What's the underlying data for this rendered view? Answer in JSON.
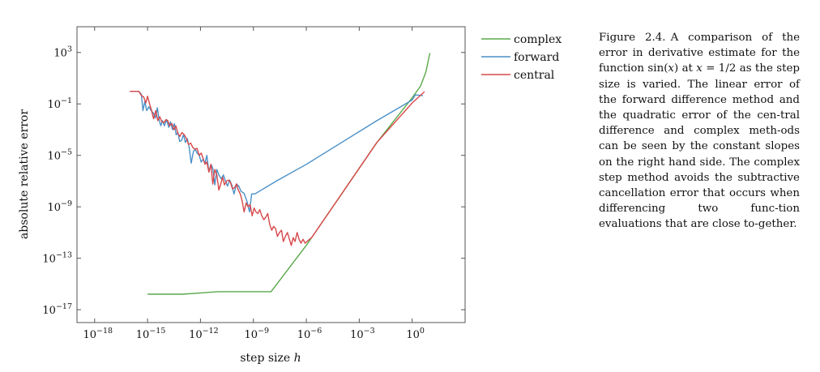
{
  "chart_data": {
    "type": "line",
    "xlabel": "step size h",
    "ylabel": "absolute relative error",
    "x_scale": "log",
    "y_scale": "log",
    "xlim": [
      1e-19,
      1000.0
    ],
    "ylim": [
      1e-18,
      100000.0
    ],
    "grid": false,
    "legend_position": "outside-right-top",
    "x_ticks": [
      {
        "value": 1e-18,
        "base": "10",
        "exp": "−18"
      },
      {
        "value": 1e-15,
        "base": "10",
        "exp": "−15"
      },
      {
        "value": 1e-12,
        "base": "10",
        "exp": "−12"
      },
      {
        "value": 1e-09,
        "base": "10",
        "exp": "−9"
      },
      {
        "value": 1e-06,
        "base": "10",
        "exp": "−6"
      },
      {
        "value": 0.001,
        "base": "10",
        "exp": "−3"
      },
      {
        "value": 1,
        "base": "10",
        "exp": "0"
      }
    ],
    "y_ticks": [
      {
        "value": 1000.0,
        "base": "10",
        "exp": "3"
      },
      {
        "value": 0.1,
        "base": "10",
        "exp": "−1"
      },
      {
        "value": 1e-05,
        "base": "10",
        "exp": "−5"
      },
      {
        "value": 1e-09,
        "base": "10",
        "exp": "−9"
      },
      {
        "value": 1e-13,
        "base": "10",
        "exp": "−13"
      },
      {
        "value": 1e-17,
        "base": "10",
        "exp": "−17"
      }
    ],
    "series": [
      {
        "name": "complex",
        "color": "#5aa84c",
        "points": [
          [
            1e-15,
            1.6e-16
          ],
          [
            1e-13,
            1.6e-16
          ],
          [
            1e-11,
            2.5e-16
          ],
          [
            1e-08,
            2.5e-16
          ],
          [
            1e-06,
            1e-12
          ],
          [
            0.0001,
            1e-08
          ],
          [
            0.01,
            0.0001
          ],
          [
            1,
            0.3
          ],
          [
            3,
            2.5
          ],
          [
            6,
            30
          ],
          [
            10,
            900
          ]
        ]
      },
      {
        "name": "forward",
        "color": "#4a90c8",
        "points": [
          [
            1e-16,
            0.95
          ],
          [
            3.2e-16,
            0.95
          ],
          [
            4.5e-16,
            0.55
          ],
          [
            5.5e-16,
            0.03
          ],
          [
            7e-16,
            0.15
          ],
          [
            9e-16,
            0.03
          ],
          [
            1.2e-15,
            0.06
          ],
          [
            1.6e-15,
            0.03
          ],
          [
            2.1e-15,
            0.02
          ],
          [
            2.8e-15,
            0.008
          ],
          [
            3.6e-15,
            0.05
          ],
          [
            4.5e-15,
            0.006
          ],
          [
            5.6e-15,
            0.002
          ],
          [
            7e-15,
            0.005
          ],
          [
            9e-15,
            0.002
          ],
          [
            1.2e-14,
            0.006
          ],
          [
            1.6e-14,
            0.0015
          ],
          [
            2e-14,
            0.004
          ],
          [
            2.6e-14,
            0.001
          ],
          [
            3.3e-14,
            0.003
          ],
          [
            4.2e-14,
            0.0004
          ],
          [
            5.3e-14,
            0.0006
          ],
          [
            6.6e-14,
            0.00012
          ],
          [
            8.5e-14,
            0.00015
          ],
          [
            1.1e-13,
            0.0004
          ],
          [
            1.4e-13,
            0.0001
          ],
          [
            1.8e-13,
            0.0002
          ],
          [
            2.3e-13,
            4e-05
          ],
          [
            3e-13,
            2.5e-06
          ],
          [
            4e-13,
            2e-05
          ],
          [
            5e-13,
            3e-05
          ],
          [
            6.5e-13,
            1.5e-05
          ],
          [
            8.5e-13,
            1e-05
          ],
          [
            1.1e-12,
            3e-06
          ],
          [
            1.4e-12,
            5e-06
          ],
          [
            1.8e-12,
            2.5e-06
          ],
          [
            2.3e-12,
            1e-05
          ],
          [
            3e-12,
            5e-07
          ],
          [
            4e-12,
            2e-06
          ],
          [
            5e-12,
            1e-06
          ],
          [
            6.5e-12,
            5e-08
          ],
          [
            8.5e-12,
            8e-07
          ],
          [
            1.1e-11,
            3e-07
          ],
          [
            1.5e-11,
            1.5e-07
          ],
          [
            2e-11,
            3e-07
          ],
          [
            2.6e-11,
            1e-07
          ],
          [
            3.4e-11,
            4e-08
          ],
          [
            4.5e-11,
            1.2e-07
          ],
          [
            6e-11,
            5e-08
          ],
          [
            8e-11,
            1e-08
          ],
          [
            1.1e-10,
            6e-08
          ],
          [
            1.5e-10,
            4e-08
          ],
          [
            2e-10,
            1.6e-08
          ],
          [
            3e-10,
            1.1e-08
          ],
          [
            4.5e-10,
            2.2e-09
          ],
          [
            6e-10,
            4e-10
          ],
          [
            8e-10,
            1e-08
          ],
          [
            1.2e-09,
            1e-08
          ],
          [
            2e-08,
            1e-07
          ],
          [
            1e-06,
            2e-06
          ],
          [
            0.0001,
            0.0001
          ],
          [
            0.01,
            0.005
          ],
          [
            1,
            0.2
          ],
          [
            1.5,
            0.5
          ],
          [
            4,
            0.45
          ]
        ]
      },
      {
        "name": "central",
        "color": "#d8484a",
        "points": [
          [
            1e-16,
            0.95
          ],
          [
            3.2e-16,
            0.95
          ],
          [
            4.5e-16,
            0.45
          ],
          [
            6e-16,
            0.35
          ],
          [
            8e-16,
            0.12
          ],
          [
            1e-15,
            0.4
          ],
          [
            1.3e-15,
            0.1
          ],
          [
            1.7e-15,
            0.03
          ],
          [
            2.2e-15,
            0.007
          ],
          [
            2.9e-15,
            0.03
          ],
          [
            3.8e-15,
            0.005
          ],
          [
            5e-15,
            0.01
          ],
          [
            6.5e-15,
            0.004
          ],
          [
            8.5e-15,
            0.0035
          ],
          [
            1.1e-14,
            0.006
          ],
          [
            1.4e-14,
            0.005
          ],
          [
            1.8e-14,
            0.002
          ],
          [
            2.4e-14,
            0.003
          ],
          [
            3.1e-14,
            0.001
          ],
          [
            4e-14,
            0.002
          ],
          [
            5.2e-14,
            0.0005
          ],
          [
            6.8e-14,
            0.0003
          ],
          [
            9e-14,
            0.0006
          ],
          [
            1.2e-13,
            0.0004
          ],
          [
            1.6e-13,
            0.0002
          ],
          [
            2.1e-13,
            7e-05
          ],
          [
            2.8e-13,
            9e-05
          ],
          [
            3.7e-13,
            4e-05
          ],
          [
            4.9e-13,
            3e-05
          ],
          [
            6.4e-13,
            3.5e-05
          ],
          [
            8.4e-13,
            1e-05
          ],
          [
            1.1e-12,
            1.5e-05
          ],
          [
            1.4e-12,
            6e-06
          ],
          [
            1.8e-12,
            2e-06
          ],
          [
            2.3e-12,
            3e-06
          ],
          [
            3e-12,
            5e-07
          ],
          [
            3.9e-12,
            2e-06
          ],
          [
            5e-12,
            6e-08
          ],
          [
            6.5e-12,
            8e-07
          ],
          [
            8.5e-12,
            3e-07
          ],
          [
            1.1e-11,
            2e-08
          ],
          [
            1.4e-11,
            6e-08
          ],
          [
            1.8e-11,
            2e-07
          ],
          [
            2.3e-11,
            5e-08
          ],
          [
            3e-11,
            1e-07
          ],
          [
            3.9e-11,
            1.2e-07
          ],
          [
            5e-11,
            8e-08
          ],
          [
            6.5e-11,
            2.5e-08
          ],
          [
            8.5e-11,
            3e-08
          ],
          [
            1.1e-10,
            6e-08
          ],
          [
            1.4e-10,
            2e-08
          ],
          [
            1.8e-10,
            1e-08
          ],
          [
            2.3e-10,
            3e-09
          ],
          [
            3e-10,
            4e-10
          ],
          [
            3.9e-10,
            2e-09
          ],
          [
            5e-10,
            1e-09
          ],
          [
            6.5e-10,
            1.5e-09
          ],
          [
            8.5e-10,
            2e-10
          ],
          [
            1.1e-09,
            8e-10
          ],
          [
            1.4e-09,
            4e-10
          ],
          [
            1.8e-09,
            3e-10
          ],
          [
            2.3e-09,
            6e-10
          ],
          [
            3e-09,
            2e-10
          ],
          [
            3.9e-09,
            1e-10
          ],
          [
            5e-09,
            1.5e-10
          ],
          [
            6.5e-09,
            3e-10
          ],
          [
            8.5e-09,
            4e-11
          ],
          [
            1.1e-08,
            1.5e-11
          ],
          [
            1.4e-08,
            3e-11
          ],
          [
            1.8e-08,
            2e-11
          ],
          [
            2.3e-08,
            5e-12
          ],
          [
            3e-08,
            1e-11
          ],
          [
            3.9e-08,
            1.5e-11
          ],
          [
            5e-08,
            2e-12
          ],
          [
            6.5e-08,
            5e-12
          ],
          [
            8.5e-08,
            1e-11
          ],
          [
            1.1e-07,
            3e-12
          ],
          [
            1.4e-07,
            1e-12
          ],
          [
            1.8e-07,
            4e-12
          ],
          [
            2.3e-07,
            2e-12
          ],
          [
            3e-07,
            1e-11
          ],
          [
            3.9e-07,
            3e-12
          ],
          [
            5e-07,
            1.5e-12
          ],
          [
            6.5e-07,
            3e-12
          ],
          [
            8.5e-07,
            1.5e-12
          ],
          [
            1.1e-06,
            2e-12
          ],
          [
            1.5e-06,
            3e-12
          ],
          [
            2e-06,
            4e-12
          ],
          [
            0.0001,
            1e-08
          ],
          [
            0.01,
            0.0001
          ],
          [
            1,
            0.12
          ],
          [
            5,
            0.9
          ]
        ]
      }
    ]
  },
  "caption": {
    "label": "Figure 2.4.",
    "lines": [
      "A comparison of the",
      "error in derivative estimate for the",
      "function sin(𝑥) at 𝑥 = 1/2 as the",
      "step size is varied. The linear error",
      "of the forward difference method",
      "and the quadratic error of the cen-",
      "tral difference and complex meth-",
      "ods can be seen by the constant",
      "slopes on the right hand side. The",
      "complex step method avoids the",
      "subtractive cancellation error that",
      "occurs when differencing two func-",
      "tion evaluations that are close to-",
      "gether."
    ]
  }
}
